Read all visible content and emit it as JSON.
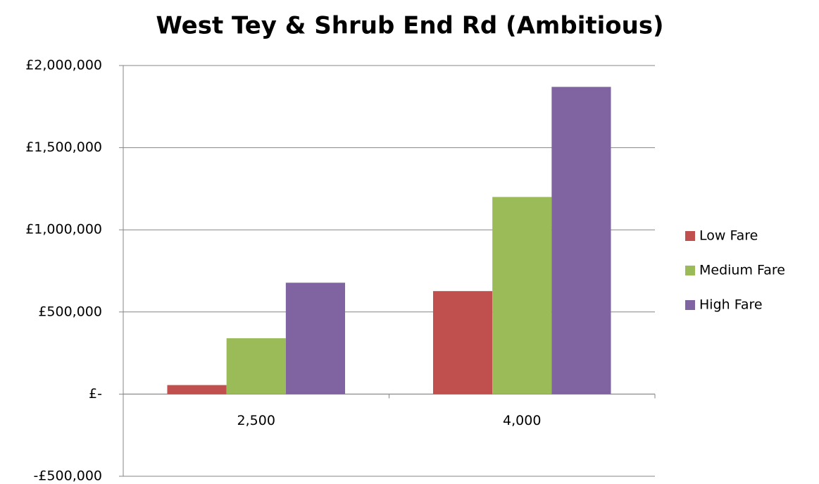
{
  "chart_data": {
    "type": "bar",
    "title": "West Tey & Shrub End Rd (Ambitious)",
    "categories": [
      "2,500",
      "4,000"
    ],
    "series": [
      {
        "name": "Low Fare",
        "color": "#c0504d",
        "values": [
          55000,
          627000
        ]
      },
      {
        "name": "Medium Fare",
        "color": "#9bbb59",
        "values": [
          340000,
          1200000
        ]
      },
      {
        "name": "High Fare",
        "color": "#8064a2",
        "values": [
          678000,
          1870000
        ]
      }
    ],
    "ylim": [
      -500000,
      2000000
    ],
    "yticks": [
      {
        "value": -500000,
        "label": "-£500,000"
      },
      {
        "value": 0,
        "label": "£-"
      },
      {
        "value": 500000,
        "label": "£500,000"
      },
      {
        "value": 1000000,
        "label": "£1,000,000"
      },
      {
        "value": 1500000,
        "label": "£1,500,000"
      },
      {
        "value": 2000000,
        "label": "£2,000,000"
      }
    ],
    "grid": true,
    "legend": "right"
  }
}
